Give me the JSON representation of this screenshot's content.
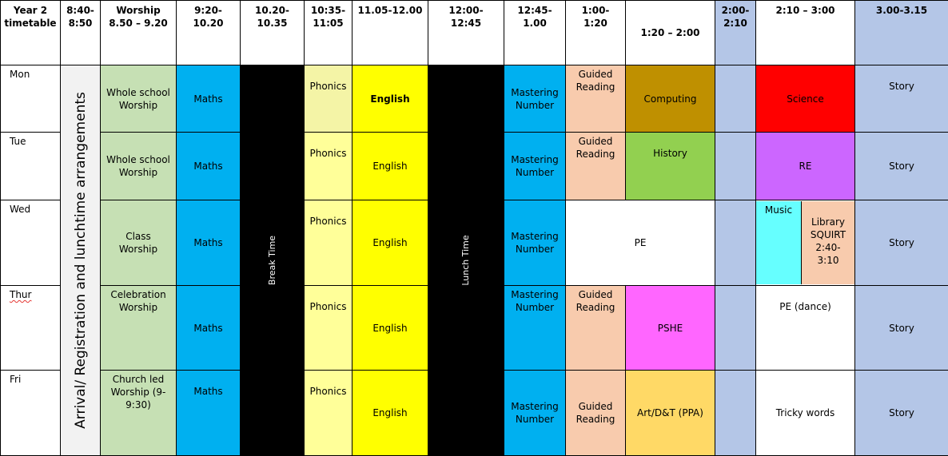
{
  "colors": {
    "worship": "#c6e0b4",
    "maths": "#00b0f0",
    "black_bar": "#000000",
    "phonics_mon": "#f4f4a6",
    "phonics": "#ffff99",
    "english": "#ffff00",
    "guided_reading": "#f8cbad",
    "computing": "#bf9000",
    "history": "#92d050",
    "science": "#ff0000",
    "re": "#cc66ff",
    "pshe": "#ff66ff",
    "art": "#ffd966",
    "music": "#66ffff",
    "library": "#f8cbad",
    "story_and_210": "#b4c6e7",
    "arrival": "#f2f2f2"
  },
  "headers": {
    "corner": [
      "Year 2",
      "timetable"
    ],
    "c1": [
      "8:40-",
      "8:50"
    ],
    "c2": [
      "Worship",
      "8.50 – 9.20"
    ],
    "c3": [
      "9:20-",
      "10.20"
    ],
    "c4": [
      "10.20-",
      "10.35"
    ],
    "c5": [
      "10:35-",
      "11:05"
    ],
    "c6": [
      "11.05-12.00"
    ],
    "c7": [
      "12:00-",
      "12:45"
    ],
    "c8": [
      "12:45-",
      "1.00"
    ],
    "c9": [
      "1:00-",
      "1:20"
    ],
    "c10": [
      "1:20 – 2:00"
    ],
    "c11": [
      "2:00-",
      "2:10"
    ],
    "c12": [
      "2:10 – 3:00"
    ],
    "c13": [
      "3.00-3.15"
    ]
  },
  "days": {
    "mon": "Mon",
    "tue": "Tue",
    "wed": "Wed",
    "thu": "Thur",
    "fri": "Fri"
  },
  "arrival": "Arrival/ Registration and lunchtime arrangements",
  "break": "Break Time",
  "lunch": "Lunch Time",
  "worship": {
    "mon": [
      "Whole school",
      "Worship"
    ],
    "tue": [
      "Whole school",
      "Worship"
    ],
    "wed": [
      "Class",
      "Worship"
    ],
    "thu": [
      "Celebration",
      "Worship"
    ],
    "fri": [
      "Church led",
      "Worship (9-",
      "9:30)"
    ]
  },
  "maths": "Maths",
  "phonics": "Phonics",
  "english": "English",
  "mastering": [
    "Mastering",
    "Number"
  ],
  "guided": [
    "Guided",
    "Reading"
  ],
  "afternoon": {
    "mon_120": "Computing",
    "tue_120": "History",
    "wed_pe": "PE",
    "thu_120": "PSHE",
    "fri_120": "Art/D&T (PPA)",
    "mon_210": "Science",
    "tue_210": "RE",
    "wed_music": "Music",
    "wed_library": [
      "Library",
      "SQUIRT",
      "2:40-",
      "3:10"
    ],
    "thu_210": "PE (dance)",
    "fri_210": "Tricky words"
  },
  "story": "Story"
}
